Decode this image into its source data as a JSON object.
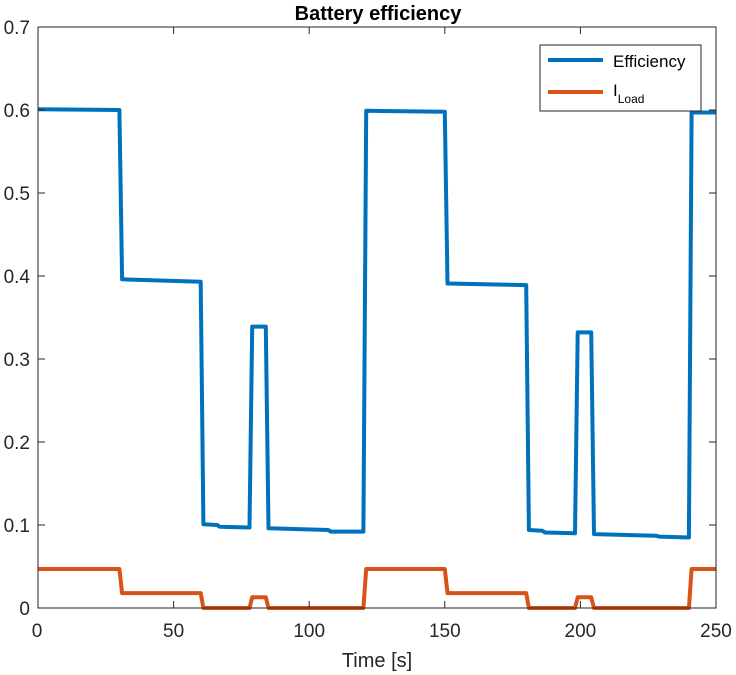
{
  "chart_data": {
    "type": "line",
    "title": "Battery efficiency",
    "xlabel": "Time [s]",
    "ylabel": "",
    "xlim": [
      0,
      250
    ],
    "ylim": [
      0,
      0.7
    ],
    "xticks": [
      0,
      50,
      100,
      150,
      200,
      250
    ],
    "xtick_labels": [
      "0",
      "50",
      "100",
      "150",
      "200",
      "250"
    ],
    "yticks": [
      0,
      0.1,
      0.2,
      0.3,
      0.4,
      0.5,
      0.6,
      0.7
    ],
    "ytick_labels": [
      "0",
      "0.1",
      "0.2",
      "0.3",
      "0.4",
      "0.5",
      "0.6",
      "0.7"
    ],
    "grid": false,
    "legend_position": "top-right",
    "legend": {
      "efficiency_label": "Efficiency",
      "iload_main": "I",
      "iload_sub": "Load"
    },
    "series": [
      {
        "name": "Efficiency",
        "color": "#0072BD",
        "x": [
          0,
          30,
          31,
          60,
          61,
          66,
          67,
          78,
          79,
          84,
          85,
          107,
          108,
          120,
          121,
          150,
          151,
          180,
          181,
          186,
          187,
          198,
          199,
          204,
          205,
          228,
          229,
          240,
          241,
          250
        ],
        "y": [
          0.601,
          0.6,
          0.396,
          0.393,
          0.101,
          0.1,
          0.098,
          0.097,
          0.339,
          0.339,
          0.096,
          0.094,
          0.092,
          0.092,
          0.599,
          0.598,
          0.391,
          0.389,
          0.094,
          0.093,
          0.091,
          0.09,
          0.332,
          0.332,
          0.089,
          0.087,
          0.086,
          0.085,
          0.597,
          0.597
        ]
      },
      {
        "name": "I_Load",
        "color": "#D95319",
        "x": [
          0,
          30,
          31,
          60,
          61,
          78,
          79,
          84,
          85,
          120,
          121,
          150,
          151,
          180,
          181,
          198,
          199,
          204,
          205,
          240,
          241,
          250
        ],
        "y": [
          0.047,
          0.047,
          0.018,
          0.018,
          0,
          0,
          0.013,
          0.013,
          0,
          0,
          0.047,
          0.047,
          0.018,
          0.018,
          0,
          0,
          0.013,
          0.013,
          0,
          0,
          0.047,
          0.047
        ]
      }
    ]
  }
}
